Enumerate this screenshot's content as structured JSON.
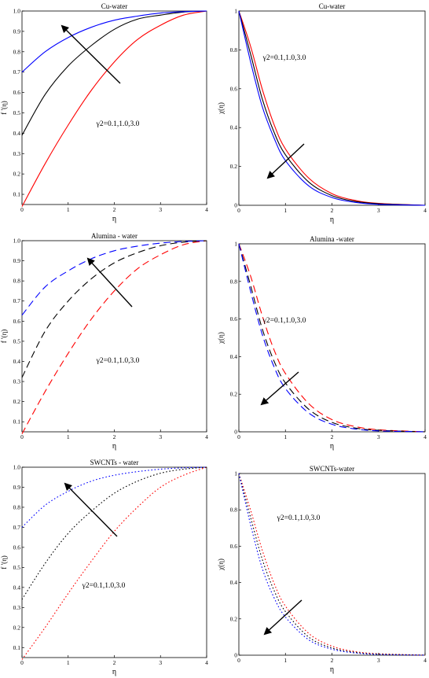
{
  "chart_data": [
    {
      "type": "line",
      "title": "Cu-water",
      "xlabel": "η",
      "ylabel": "f '(η)",
      "xlim": [
        0,
        4
      ],
      "ylim": [
        0.05,
        1.0
      ],
      "xticks": [
        "0",
        "1",
        "2",
        "3",
        "4"
      ],
      "yticks": [
        "0.1",
        "0.2",
        "0.3",
        "0.4",
        "0.5",
        "0.6",
        "0.7",
        "0.8",
        "0.9",
        "1.0"
      ],
      "annotation": "γ2=0.1,1.0,3.0",
      "line_style": "solid",
      "series": [
        {
          "color": "#ff0000",
          "x": [
            0,
            0.5,
            1,
            1.5,
            2,
            2.5,
            3,
            3.5,
            4
          ],
          "y": [
            0.04,
            0.25,
            0.44,
            0.61,
            0.75,
            0.86,
            0.93,
            0.98,
            1.0
          ]
        },
        {
          "color": "#000000",
          "x": [
            0,
            0.5,
            1,
            1.5,
            2,
            2.5,
            3,
            3.5,
            4
          ],
          "y": [
            0.39,
            0.59,
            0.73,
            0.83,
            0.91,
            0.96,
            0.98,
            0.995,
            1.0
          ]
        },
        {
          "color": "#0000ff",
          "x": [
            0,
            0.5,
            1,
            1.5,
            2,
            2.5,
            3,
            3.5,
            4
          ],
          "y": [
            0.7,
            0.8,
            0.87,
            0.92,
            0.955,
            0.975,
            0.99,
            0.997,
            1.0
          ]
        }
      ]
    },
    {
      "type": "line",
      "title": "Cu-water",
      "xlabel": "η",
      "ylabel": "χ(η)",
      "xlim": [
        0,
        4
      ],
      "ylim": [
        0,
        1
      ],
      "xticks": [
        "0",
        "1",
        "2",
        "3",
        "4"
      ],
      "yticks": [
        "0",
        "0.2",
        "0.4",
        "0.6",
        "0.8",
        "1"
      ],
      "annotation": "γ2=0.1,1.0,3.0",
      "line_style": "solid",
      "series": [
        {
          "color": "#ff0000",
          "x": [
            0,
            0.25,
            0.5,
            0.75,
            1,
            1.5,
            2,
            2.5,
            3,
            4
          ],
          "y": [
            1.0,
            0.82,
            0.6,
            0.42,
            0.29,
            0.14,
            0.06,
            0.025,
            0.01,
            0.0
          ]
        },
        {
          "color": "#000000",
          "x": [
            0,
            0.25,
            0.5,
            0.75,
            1,
            1.5,
            2,
            2.5,
            3,
            4
          ],
          "y": [
            1.0,
            0.78,
            0.55,
            0.38,
            0.26,
            0.12,
            0.05,
            0.02,
            0.008,
            0.0
          ]
        },
        {
          "color": "#0000ff",
          "x": [
            0,
            0.25,
            0.5,
            0.75,
            1,
            1.5,
            2,
            2.5,
            3,
            4
          ],
          "y": [
            1.0,
            0.74,
            0.51,
            0.35,
            0.23,
            0.1,
            0.04,
            0.015,
            0.005,
            0.0
          ]
        }
      ]
    },
    {
      "type": "line",
      "title": "Alumina - water",
      "xlabel": "η",
      "ylabel": "f '(η)",
      "xlim": [
        0,
        4
      ],
      "ylim": [
        0.05,
        1.0
      ],
      "xticks": [
        "0",
        "1",
        "2",
        "3",
        "4"
      ],
      "yticks": [
        "0.1",
        "0.2",
        "0.3",
        "0.4",
        "0.5",
        "0.6",
        "0.7",
        "0.8",
        "0.9",
        "1.0"
      ],
      "annotation": "γ2=0.1,1.0,3.0",
      "line_style": "dashed",
      "series": [
        {
          "color": "#ff0000",
          "x": [
            0,
            0.5,
            1,
            1.5,
            2,
            2.5,
            3,
            3.5,
            4
          ],
          "y": [
            0.04,
            0.25,
            0.44,
            0.61,
            0.75,
            0.86,
            0.93,
            0.98,
            1.0
          ]
        },
        {
          "color": "#000000",
          "x": [
            0,
            0.5,
            1,
            1.5,
            2,
            2.5,
            3,
            3.5,
            4
          ],
          "y": [
            0.32,
            0.55,
            0.7,
            0.81,
            0.89,
            0.94,
            0.975,
            0.993,
            1.0
          ]
        },
        {
          "color": "#0000ff",
          "x": [
            0,
            0.5,
            1,
            1.5,
            2,
            2.5,
            3,
            3.5,
            4
          ],
          "y": [
            0.63,
            0.77,
            0.85,
            0.91,
            0.95,
            0.973,
            0.988,
            0.996,
            1.0
          ]
        }
      ]
    },
    {
      "type": "line",
      "title": "Alumina -water",
      "xlabel": "η",
      "ylabel": "χ(η)",
      "xlim": [
        0,
        4
      ],
      "ylim": [
        0,
        1
      ],
      "xticks": [
        "0",
        "1",
        "2",
        "3",
        "4"
      ],
      "yticks": [
        "0",
        "0.2",
        "0.4",
        "0.6",
        "0.8",
        "1"
      ],
      "annotation": "γ2=0.1,1.0,3.0",
      "line_style": "dashed",
      "series": [
        {
          "color": "#ff0000",
          "x": [
            0,
            0.25,
            0.5,
            0.75,
            1,
            1.5,
            2,
            2.5,
            3,
            4
          ],
          "y": [
            1.0,
            0.83,
            0.62,
            0.44,
            0.31,
            0.15,
            0.065,
            0.028,
            0.011,
            0.0
          ]
        },
        {
          "color": "#000000",
          "x": [
            0,
            0.25,
            0.5,
            0.75,
            1,
            1.5,
            2,
            2.5,
            3,
            4
          ],
          "y": [
            1.0,
            0.78,
            0.55,
            0.38,
            0.26,
            0.12,
            0.05,
            0.02,
            0.008,
            0.0
          ]
        },
        {
          "color": "#0000ff",
          "x": [
            0,
            0.25,
            0.5,
            0.75,
            1,
            1.5,
            2,
            2.5,
            3,
            4
          ],
          "y": [
            1.0,
            0.75,
            0.52,
            0.35,
            0.23,
            0.1,
            0.04,
            0.015,
            0.005,
            0.0
          ]
        }
      ]
    },
    {
      "type": "line",
      "title": "SWCNTs - water",
      "xlabel": "η",
      "ylabel": "f '(η)",
      "xlim": [
        0,
        4
      ],
      "ylim": [
        0.05,
        1.0
      ],
      "xticks": [
        "0",
        "1",
        "2",
        "3",
        "4"
      ],
      "yticks": [
        "0.1",
        "0.2",
        "0.3",
        "0.4",
        "0.5",
        "0.6",
        "0.7",
        "0.8",
        "0.9",
        "1.0"
      ],
      "annotation": "γ2=0.1,1.0,3.0",
      "line_style": "dotted",
      "series": [
        {
          "color": "#ff0000",
          "x": [
            0,
            0.5,
            1,
            1.5,
            2,
            2.5,
            3,
            3.5,
            4
          ],
          "y": [
            0.04,
            0.2,
            0.37,
            0.53,
            0.68,
            0.8,
            0.9,
            0.96,
            1.0
          ]
        },
        {
          "color": "#000000",
          "x": [
            0,
            0.5,
            1,
            1.5,
            2,
            2.5,
            3,
            3.5,
            4
          ],
          "y": [
            0.34,
            0.52,
            0.67,
            0.78,
            0.87,
            0.93,
            0.97,
            0.99,
            1.0
          ]
        },
        {
          "color": "#0000ff",
          "x": [
            0,
            0.5,
            1,
            1.5,
            2,
            2.5,
            3,
            3.5,
            4
          ],
          "y": [
            0.7,
            0.81,
            0.88,
            0.93,
            0.96,
            0.978,
            0.99,
            0.997,
            1.0
          ]
        }
      ]
    },
    {
      "type": "line",
      "title": "SWCNTs-water",
      "xlabel": "η",
      "ylabel": "χ(η)",
      "xlim": [
        0,
        4
      ],
      "ylim": [
        0,
        1
      ],
      "xticks": [
        "0",
        "1",
        "2",
        "3",
        "4"
      ],
      "yticks": [
        "0",
        "0.2",
        "0.4",
        "0.6",
        "0.8",
        "1"
      ],
      "annotation": "γ2=0.1,1.0,3.0",
      "line_style": "dotted",
      "series": [
        {
          "color": "#ff0000",
          "x": [
            0,
            0.25,
            0.5,
            0.75,
            1,
            1.5,
            2,
            2.5,
            3,
            4
          ],
          "y": [
            1.0,
            0.8,
            0.58,
            0.4,
            0.27,
            0.12,
            0.05,
            0.02,
            0.008,
            0.0
          ]
        },
        {
          "color": "#000000",
          "x": [
            0,
            0.25,
            0.5,
            0.75,
            1,
            1.5,
            2,
            2.5,
            3,
            4
          ],
          "y": [
            1.0,
            0.76,
            0.53,
            0.36,
            0.24,
            0.1,
            0.04,
            0.016,
            0.006,
            0.0
          ]
        },
        {
          "color": "#0000ff",
          "x": [
            0,
            0.25,
            0.5,
            0.75,
            1,
            1.5,
            2,
            2.5,
            3,
            4
          ],
          "y": [
            1.0,
            0.72,
            0.48,
            0.32,
            0.21,
            0.085,
            0.033,
            0.012,
            0.004,
            0.0
          ]
        }
      ]
    }
  ]
}
